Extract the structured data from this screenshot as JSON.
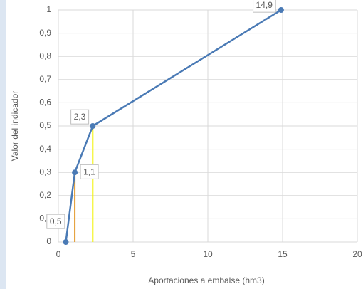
{
  "chart_data": {
    "type": "line",
    "x_label": "Aportaciones a embalse (hm3)",
    "y_label": "Valor del indicador",
    "series": [
      {
        "color": "#4a7ab5",
        "x": [
          0.5,
          1.1,
          2.3,
          14.9
        ],
        "values": [
          0,
          0.3,
          0.5,
          1
        ],
        "point_labels": [
          "0,5",
          "1,1",
          "2,3",
          "14,9"
        ]
      }
    ],
    "drop_line_colors": [
      null,
      "#e39a2d",
      "#f2f200",
      null
    ],
    "xlim": [
      0,
      20
    ],
    "xticks": [
      0,
      5,
      10,
      15,
      20
    ],
    "ylim": [
      0,
      1
    ],
    "yticks": [
      0,
      {
        "value": 0.1,
        "label": "0,1"
      },
      {
        "value": 0.2,
        "label": "0,2"
      },
      {
        "value": 0.3,
        "label": "0,3"
      },
      {
        "value": 0.4,
        "label": "0,4"
      },
      {
        "value": 0.5,
        "label": "0,5"
      },
      {
        "value": 0.6,
        "label": "0,6"
      },
      {
        "value": 0.7,
        "label": "0,7"
      },
      {
        "value": 0.8,
        "label": "0,8"
      },
      {
        "value": 0.9,
        "label": "0,9"
      },
      1
    ],
    "grid": true
  }
}
